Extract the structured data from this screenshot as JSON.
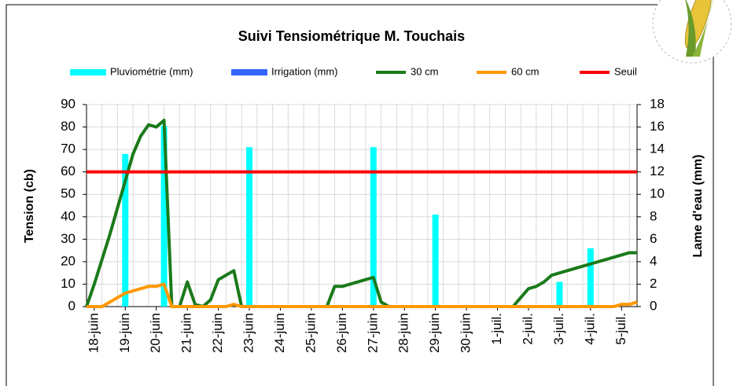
{
  "chart_data": {
    "type": "combo",
    "title": "Suivi Tensiométrique M. Touchais",
    "y_label": "Tension (cb)",
    "y2_label": "Lame d'eau (mm)",
    "categories": [
      null,
      "18-juin",
      null,
      null,
      null,
      "19-juin",
      null,
      null,
      null,
      "20-juin",
      null,
      null,
      null,
      "21-juin",
      null,
      null,
      null,
      "22-juin",
      null,
      null,
      null,
      "23-juin",
      null,
      null,
      null,
      "24-juin",
      null,
      null,
      null,
      "25-juin",
      null,
      null,
      null,
      "26-juin",
      null,
      null,
      null,
      "27-juin",
      null,
      null,
      null,
      "28-juin",
      null,
      null,
      null,
      "29-juin",
      null,
      null,
      null,
      "30-juin",
      null,
      null,
      null,
      "1-juil.",
      null,
      null,
      null,
      "2-juil.",
      null,
      null,
      null,
      "3-juil.",
      null,
      null,
      null,
      "4-juil.",
      null,
      null,
      null,
      "5-juil.",
      null,
      null
    ],
    "ylim": [
      0,
      90
    ],
    "yticks": [
      0,
      10,
      20,
      30,
      40,
      50,
      60,
      70,
      80,
      90
    ],
    "y2lim": [
      0,
      18
    ],
    "y2ticks": [
      0,
      2,
      4,
      6,
      8,
      10,
      12,
      14,
      16,
      18
    ],
    "grid": true,
    "series": [
      {
        "name": "Pluviométrie (mm)",
        "type": "bar",
        "axis": "y2",
        "color": "#00ffff",
        "values": [
          null,
          null,
          null,
          null,
          null,
          13.6,
          null,
          null,
          null,
          null,
          16.1,
          null,
          null,
          null,
          null,
          null,
          null,
          null,
          null,
          null,
          null,
          14.2,
          null,
          null,
          null,
          null,
          null,
          null,
          null,
          null,
          null,
          null,
          null,
          null,
          null,
          null,
          null,
          14.2,
          null,
          null,
          null,
          null,
          null,
          null,
          null,
          8.2,
          null,
          null,
          null,
          null,
          null,
          null,
          null,
          null,
          null,
          null,
          null,
          null,
          null,
          null,
          null,
          2.2,
          null,
          null,
          null,
          5.2,
          null,
          null,
          null,
          null,
          null,
          null
        ]
      },
      {
        "name": "Irrigation (mm)",
        "type": "bar",
        "axis": "y2",
        "color": "#3366ff",
        "values": [
          null,
          null,
          null,
          null,
          null,
          null,
          null,
          null,
          null,
          null,
          null,
          null,
          null,
          null,
          null,
          null,
          null,
          null,
          null,
          null,
          null,
          null,
          null,
          null,
          null,
          null,
          null,
          null,
          null,
          null,
          null,
          null,
          null,
          null,
          null,
          null,
          null,
          null,
          null,
          null,
          null,
          null,
          null,
          null,
          null,
          null,
          null,
          null,
          null,
          null,
          null,
          null,
          null,
          null,
          null,
          null,
          null,
          null,
          null,
          null,
          null,
          null,
          null,
          null,
          null,
          null,
          null,
          null,
          null,
          null,
          null,
          null
        ]
      },
      {
        "name": "30 cm",
        "type": "line",
        "color": "#1a7a1a",
        "values": [
          0,
          10,
          21,
          32,
          44,
          56,
          68,
          76,
          81,
          80,
          83,
          0,
          0,
          11,
          1,
          0,
          3,
          12,
          14,
          16,
          0,
          0,
          0,
          0,
          0,
          0,
          0,
          0,
          0,
          0,
          0,
          0,
          9,
          9,
          10,
          11,
          12,
          13,
          2,
          0,
          0,
          0,
          0,
          0,
          0,
          0,
          0,
          0,
          0,
          0,
          0,
          0,
          0,
          0,
          0,
          0,
          4,
          8,
          9,
          11,
          14,
          15,
          16,
          17,
          18,
          19,
          20,
          21,
          22,
          23,
          24,
          24
        ]
      },
      {
        "name": "60 cm",
        "type": "line",
        "color": "#ff9900",
        "values": [
          0,
          0,
          0,
          2,
          4,
          6,
          7,
          8,
          9,
          9,
          10,
          0,
          0,
          0,
          0,
          0,
          0,
          0,
          0,
          1,
          0,
          0,
          0,
          0,
          0,
          0,
          0,
          0,
          0,
          0,
          0,
          0,
          0,
          0,
          0,
          0,
          0,
          0,
          0,
          0,
          0,
          0,
          0,
          0,
          0,
          0,
          0,
          0,
          0,
          0,
          0,
          0,
          0,
          0,
          0,
          0,
          0,
          0,
          0,
          0,
          0,
          0,
          0,
          0,
          0,
          0,
          0,
          0,
          0,
          1,
          1,
          2
        ]
      }
    ],
    "threshold": {
      "name": "Seuil",
      "value": 60,
      "color": "#ff0000"
    }
  }
}
